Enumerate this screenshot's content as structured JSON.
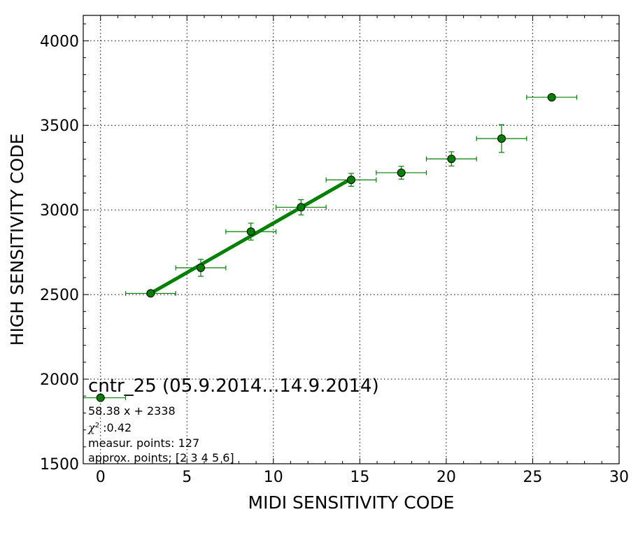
{
  "chart_data": {
    "type": "scatter",
    "xlabel": "MIDI SENSITIVITY CODE",
    "ylabel": "HIGH SENSITIVITY CODE",
    "xlim": [
      -1,
      30
    ],
    "ylim": [
      1500,
      4150
    ],
    "xticks": [
      0,
      5,
      10,
      15,
      20,
      25,
      30
    ],
    "yticks": [
      1500,
      2000,
      2500,
      3000,
      3500,
      4000
    ],
    "grid": true,
    "color": "#008000",
    "series": [
      {
        "marker": "circle",
        "points": [
          {
            "x": 0.0,
            "y": 1890,
            "xerr": 1.45,
            "yerr": 0
          },
          {
            "x": 2.9,
            "y": 2507,
            "xerr": 1.45,
            "yerr": 10
          },
          {
            "x": 5.8,
            "y": 2658,
            "xerr": 1.45,
            "yerr": 50
          },
          {
            "x": 8.7,
            "y": 2872,
            "xerr": 1.45,
            "yerr": 50
          },
          {
            "x": 11.6,
            "y": 3016,
            "xerr": 1.45,
            "yerr": 45
          },
          {
            "x": 14.5,
            "y": 3178,
            "xerr": 1.45,
            "yerr": 38
          },
          {
            "x": 17.4,
            "y": 3220,
            "xerr": 1.45,
            "yerr": 38
          },
          {
            "x": 20.3,
            "y": 3302,
            "xerr": 1.45,
            "yerr": 42
          },
          {
            "x": 23.2,
            "y": 3422,
            "xerr": 1.45,
            "yerr": 82
          },
          {
            "x": 26.1,
            "y": 3666,
            "xerr": 1.45,
            "yerr": 0
          }
        ]
      }
    ],
    "fit": {
      "slope": 58.38,
      "intercept": 2338,
      "x_range": [
        2.9,
        14.5
      ]
    },
    "annotation": {
      "title": "cntr_25 (05.9.2014...14.9.2014)",
      "equation": "58.38 x + 2338",
      "chi2_symbol": "χ",
      "chi2_power": "2",
      "chi2_value": " :0.42",
      "measur_points": "measur. points: 127",
      "approx_points": "approx. points: [2 3 4 5 6]"
    }
  }
}
